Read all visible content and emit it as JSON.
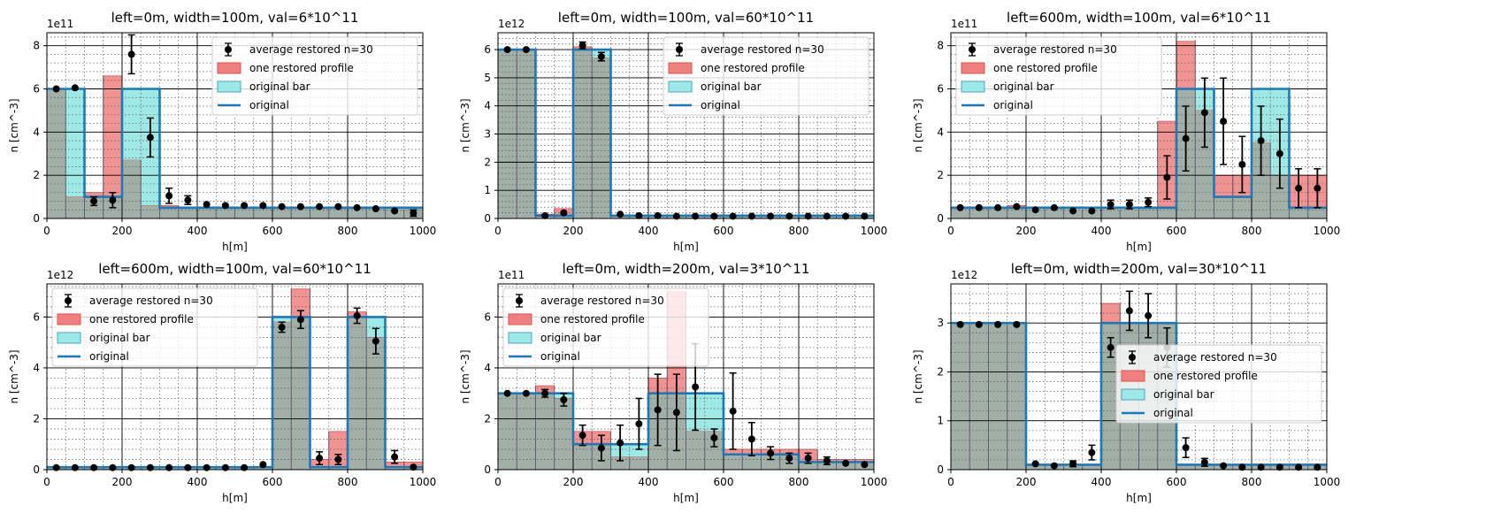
{
  "legend_labels": {
    "avg": "average restored n=30",
    "prof": "one restored profile",
    "bar": "original bar",
    "orig": "original"
  },
  "colors": {
    "profile_fill": "#f08080",
    "profile_edge": "#d9534f",
    "bar_fill": "#9ee9e6",
    "bar_edge": "#4aa3c8",
    "overlap": "#a2aea8",
    "original_line": "#1f77b4",
    "errorbar": "#000000",
    "grid_major": "#000000",
    "grid_minor": "#555555"
  },
  "chart_data": [
    {
      "type": "bar",
      "title": "left=0m, width=100m, val=6*10^11",
      "xlabel": "h[m]",
      "ylabel": "n [cm^-3]",
      "xlim": [
        0,
        1000
      ],
      "ylim": [
        0,
        8.6
      ],
      "xticks": [
        0,
        200,
        400,
        600,
        800,
        1000
      ],
      "yticks": [
        0,
        2,
        4,
        6,
        8
      ],
      "offset": "1e11",
      "legend_loc": "upper right",
      "bin_edges": [
        0,
        100,
        200,
        300,
        400,
        500,
        600,
        700,
        800,
        900,
        1000
      ],
      "original": [
        6,
        1,
        6,
        0.5,
        0.5,
        0.5,
        0.5,
        0.5,
        0.5,
        0.5
      ],
      "profile": [
        6,
        1,
        1.2,
        6.6,
        2.7,
        0.6,
        0.6,
        0.5,
        0.5,
        0.5,
        0.5,
        0.5,
        0.5,
        0.5,
        0.5,
        0.5,
        0.5,
        0.5,
        0.4,
        0.4
      ],
      "avg_x": [
        25,
        75,
        125,
        175,
        225,
        275,
        325,
        375,
        425,
        475,
        525,
        575,
        625,
        675,
        725,
        775,
        825,
        875,
        925,
        975
      ],
      "avg_y": [
        6.0,
        6.05,
        0.8,
        0.85,
        7.6,
        3.75,
        1.05,
        0.85,
        0.65,
        0.6,
        0.6,
        0.6,
        0.55,
        0.55,
        0.55,
        0.55,
        0.5,
        0.45,
        0.35,
        0.25
      ],
      "avg_err": [
        0.05,
        0.05,
        0.2,
        0.35,
        0.9,
        0.9,
        0.35,
        0.2,
        0.1,
        0.08,
        0.08,
        0.08,
        0.08,
        0.08,
        0.08,
        0.08,
        0.08,
        0.08,
        0.1,
        0.15
      ]
    },
    {
      "type": "bar",
      "title": "left=0m, width=100m, val=60*10^11",
      "xlabel": "h[m]",
      "ylabel": "n [cm^-3]",
      "xlim": [
        0,
        1000
      ],
      "ylim": [
        0,
        6.6
      ],
      "xticks": [
        0,
        200,
        400,
        600,
        800,
        1000
      ],
      "yticks": [
        0,
        1,
        2,
        3,
        4,
        5,
        6
      ],
      "offset": "1e12",
      "legend_loc": "upper right",
      "bin_edges": [
        0,
        100,
        200,
        300,
        400,
        500,
        600,
        700,
        800,
        900,
        1000
      ],
      "original": [
        6,
        0.1,
        6,
        0.1,
        0.1,
        0.1,
        0.1,
        0.1,
        0.1,
        0.1
      ],
      "profile": [
        6,
        6,
        0.15,
        0.35,
        6.1,
        5.7,
        0.1,
        0.1,
        0.1,
        0.1,
        0.1,
        0.1,
        0.1,
        0.1,
        0.1,
        0.1,
        0.1,
        0.1,
        0.1,
        0.1
      ],
      "avg_x": [
        25,
        75,
        125,
        175,
        225,
        275,
        325,
        375,
        425,
        475,
        525,
        575,
        625,
        675,
        725,
        775,
        825,
        875,
        925,
        975
      ],
      "avg_y": [
        6.0,
        6.0,
        0.1,
        0.2,
        6.15,
        5.75,
        0.15,
        0.1,
        0.1,
        0.08,
        0.08,
        0.08,
        0.08,
        0.08,
        0.08,
        0.08,
        0.08,
        0.08,
        0.08,
        0.08
      ],
      "avg_err": [
        0.05,
        0.05,
        0.05,
        0.08,
        0.12,
        0.15,
        0.05,
        0.04,
        0.03,
        0.03,
        0.03,
        0.03,
        0.03,
        0.03,
        0.03,
        0.03,
        0.03,
        0.03,
        0.03,
        0.03
      ]
    },
    {
      "type": "bar",
      "title": "left=600m, width=100m, val=6*10^11",
      "xlabel": "h[m]",
      "ylabel": "n [cm^-3]",
      "xlim": [
        0,
        1000
      ],
      "ylim": [
        0,
        8.6
      ],
      "xticks": [
        0,
        200,
        400,
        600,
        800,
        1000
      ],
      "yticks": [
        0,
        2,
        4,
        6,
        8
      ],
      "offset": "1e11",
      "legend_loc": "upper left",
      "bin_edges": [
        0,
        100,
        200,
        300,
        400,
        500,
        600,
        700,
        800,
        900,
        1000
      ],
      "original": [
        0.5,
        0.5,
        0.5,
        0.5,
        0.5,
        0.5,
        6,
        1,
        6,
        0.5
      ],
      "profile": [
        0.5,
        0.5,
        0.5,
        0.6,
        0.4,
        0.5,
        0.4,
        0.4,
        0.4,
        0.4,
        0.5,
        4.5,
        8.2,
        5.0,
        2.0,
        2.0,
        3.5,
        2.0,
        2.0,
        2.0
      ],
      "avg_x": [
        25,
        75,
        125,
        175,
        225,
        275,
        325,
        375,
        425,
        475,
        525,
        575,
        625,
        675,
        725,
        775,
        825,
        875,
        925,
        975
      ],
      "avg_y": [
        0.5,
        0.5,
        0.5,
        0.55,
        0.4,
        0.5,
        0.35,
        0.35,
        0.65,
        0.65,
        0.75,
        1.9,
        3.7,
        4.9,
        4.5,
        2.5,
        3.6,
        3.0,
        1.4,
        1.4
      ],
      "avg_err": [
        0.08,
        0.08,
        0.08,
        0.08,
        0.08,
        0.1,
        0.1,
        0.12,
        0.2,
        0.2,
        0.2,
        1.0,
        1.5,
        1.6,
        2.0,
        1.3,
        1.6,
        1.6,
        0.9,
        0.9
      ]
    },
    {
      "type": "bar",
      "title": "left=600m, width=100m, val=60*10^11",
      "xlabel": "h[m]",
      "ylabel": "n [cm^-3]",
      "xlim": [
        0,
        1000
      ],
      "ylim": [
        0,
        7.3
      ],
      "xticks": [
        0,
        200,
        400,
        600,
        800,
        1000
      ],
      "yticks": [
        0,
        2,
        4,
        6
      ],
      "offset": "1e12",
      "legend_loc": "upper left",
      "bin_edges": [
        0,
        100,
        200,
        300,
        400,
        500,
        600,
        700,
        800,
        900,
        1000
      ],
      "original": [
        0.1,
        0.1,
        0.1,
        0.1,
        0.1,
        0.1,
        6,
        0.1,
        6,
        0.1
      ],
      "profile": [
        0.1,
        0.1,
        0.1,
        0.1,
        0.1,
        0.1,
        0.1,
        0.1,
        0.1,
        0.1,
        0.1,
        0.1,
        5.8,
        7.1,
        0.4,
        1.5,
        6.2,
        5.2,
        0.3,
        0.3
      ],
      "avg_x": [
        25,
        75,
        125,
        175,
        225,
        275,
        325,
        375,
        425,
        475,
        525,
        575,
        625,
        675,
        725,
        775,
        825,
        875,
        925,
        975
      ],
      "avg_y": [
        0.08,
        0.08,
        0.08,
        0.08,
        0.08,
        0.08,
        0.08,
        0.08,
        0.08,
        0.08,
        0.08,
        0.2,
        5.6,
        5.9,
        0.45,
        0.4,
        6.05,
        5.05,
        0.5,
        0.1
      ],
      "avg_err": [
        0.03,
        0.03,
        0.03,
        0.03,
        0.03,
        0.03,
        0.03,
        0.03,
        0.03,
        0.03,
        0.05,
        0.1,
        0.2,
        0.35,
        0.25,
        0.2,
        0.3,
        0.5,
        0.25,
        0.05
      ]
    },
    {
      "type": "bar",
      "title": "left=0m, width=200m, val=3*10^11",
      "xlabel": "h[m]",
      "ylabel": "n [cm^-3]",
      "xlim": [
        0,
        1000
      ],
      "ylim": [
        0,
        7.3
      ],
      "xticks": [
        0,
        200,
        400,
        600,
        800,
        1000
      ],
      "yticks": [
        0,
        2,
        4,
        6
      ],
      "offset": "1e11",
      "legend_loc": "upper left",
      "bin_edges": [
        0,
        200,
        400,
        600,
        800,
        1000
      ],
      "original": [
        3,
        1,
        3,
        0.6,
        0.3
      ],
      "profile": [
        3,
        3,
        3.3,
        2.8,
        1.5,
        1.5,
        0.5,
        0.5,
        3.6,
        7.0,
        1.5,
        1.5,
        0.8,
        0.8,
        0.8,
        0.8,
        0.8,
        0.4,
        0.4,
        0.4
      ],
      "avg_x": [
        25,
        75,
        125,
        175,
        225,
        275,
        325,
        375,
        425,
        475,
        525,
        575,
        625,
        675,
        725,
        775,
        825,
        875,
        925,
        975
      ],
      "avg_y": [
        3.0,
        3.0,
        3.0,
        2.75,
        1.35,
        0.85,
        1.05,
        1.8,
        2.35,
        2.25,
        3.25,
        1.25,
        2.3,
        1.2,
        0.65,
        0.45,
        0.45,
        0.35,
        0.25,
        0.2
      ],
      "avg_err": [
        0.05,
        0.1,
        0.15,
        0.25,
        0.4,
        0.5,
        0.7,
        1.0,
        1.4,
        1.5,
        1.7,
        0.35,
        1.5,
        0.65,
        0.25,
        0.2,
        0.2,
        0.15,
        0.1,
        0.1
      ]
    },
    {
      "type": "bar",
      "title": "left=0m, width=200m, val=30*10^11",
      "xlabel": "h[m]",
      "ylabel": "n [cm^-3]",
      "xlim": [
        0,
        1000
      ],
      "ylim": [
        0,
        3.8
      ],
      "xticks": [
        0,
        200,
        400,
        600,
        800,
        1000
      ],
      "yticks": [
        0,
        1,
        2,
        3
      ],
      "offset": "1e12",
      "legend_loc": "center right",
      "bin_edges": [
        0,
        200,
        400,
        600,
        800,
        1000
      ],
      "original": [
        3,
        0.1,
        3,
        0.1,
        0.1
      ],
      "profile": [
        3,
        3,
        3,
        3,
        0.1,
        0.1,
        0.1,
        0.1,
        3.4,
        3.0,
        3.0,
        3.0,
        0.1,
        0.1,
        0.1,
        0.1,
        0.1,
        0.1,
        0.1,
        0.1
      ],
      "avg_x": [
        25,
        75,
        125,
        175,
        225,
        275,
        325,
        375,
        425,
        475,
        525,
        575,
        625,
        675,
        725,
        775,
        825,
        875,
        925,
        975
      ],
      "avg_y": [
        2.97,
        2.97,
        2.97,
        2.97,
        0.12,
        0.08,
        0.12,
        0.35,
        2.5,
        3.25,
        3.15,
        2.5,
        0.45,
        0.15,
        0.08,
        0.05,
        0.05,
        0.05,
        0.05,
        0.05
      ],
      "avg_err": [
        0.02,
        0.02,
        0.02,
        0.02,
        0.05,
        0.04,
        0.06,
        0.15,
        0.2,
        0.4,
        0.45,
        0.4,
        0.2,
        0.08,
        0.03,
        0.02,
        0.02,
        0.02,
        0.02,
        0.02
      ]
    }
  ]
}
